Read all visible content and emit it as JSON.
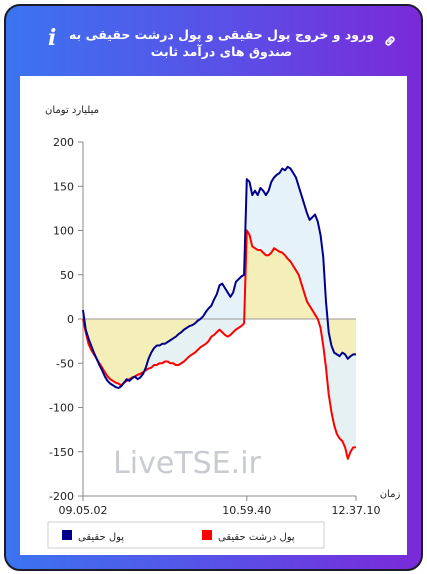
{
  "header": {
    "title": "ورود و خروج پول حقیقی و پول درشت حقیقی به صندوق های درآمد ثابت",
    "info_icon": "info-icon",
    "link_icon": "link-icon"
  },
  "colors": {
    "frame_gradient": [
      "#3b74f0",
      "#7a2ad8"
    ],
    "real_money": "#00008b",
    "big_real_money": "#ff0000",
    "fill_between": "#f4efb8",
    "fill_above": "#e3f1f9"
  },
  "watermark": "LiveTSE.ir",
  "chart_data": {
    "type": "line",
    "ylabel": "میلیارد تومان",
    "xlabel": "زمان",
    "ylim": [
      -200,
      200
    ],
    "yticks": [
      200,
      150,
      100,
      50,
      0,
      -50,
      -100,
      -150,
      -200
    ],
    "x_tick_labels": [
      {
        "x": 0,
        "label": "09.05.02"
      },
      {
        "x": 60,
        "label": "10.59.40"
      },
      {
        "x": 100,
        "label": "12.37.10"
      }
    ],
    "grid": false,
    "legend_position": "bottom",
    "series": [
      {
        "name": "پول حقیقی",
        "color": "#00008b",
        "points": [
          [
            0,
            10
          ],
          [
            1,
            -12
          ],
          [
            2,
            -22
          ],
          [
            3,
            -30
          ],
          [
            4,
            -38
          ],
          [
            5,
            -45
          ],
          [
            6,
            -52
          ],
          [
            7,
            -58
          ],
          [
            8,
            -65
          ],
          [
            9,
            -70
          ],
          [
            10,
            -73
          ],
          [
            11,
            -75
          ],
          [
            12,
            -77
          ],
          [
            13,
            -78
          ],
          [
            14,
            -76
          ],
          [
            15,
            -72
          ],
          [
            16,
            -68
          ],
          [
            17,
            -70
          ],
          [
            18,
            -67
          ],
          [
            19,
            -65
          ],
          [
            20,
            -68
          ],
          [
            21,
            -66
          ],
          [
            22,
            -62
          ],
          [
            23,
            -55
          ],
          [
            24,
            -45
          ],
          [
            25,
            -38
          ],
          [
            26,
            -33
          ],
          [
            27,
            -30
          ],
          [
            28,
            -30
          ],
          [
            29,
            -28
          ],
          [
            30,
            -28
          ],
          [
            31,
            -26
          ],
          [
            32,
            -24
          ],
          [
            33,
            -22
          ],
          [
            34,
            -20
          ],
          [
            35,
            -17
          ],
          [
            36,
            -15
          ],
          [
            37,
            -12
          ],
          [
            38,
            -10
          ],
          [
            39,
            -8
          ],
          [
            40,
            -7
          ],
          [
            41,
            -5
          ],
          [
            42,
            -2
          ],
          [
            43,
            0
          ],
          [
            44,
            3
          ],
          [
            45,
            8
          ],
          [
            46,
            12
          ],
          [
            47,
            15
          ],
          [
            48,
            22
          ],
          [
            49,
            28
          ],
          [
            50,
            38
          ],
          [
            51,
            40
          ],
          [
            52,
            35
          ],
          [
            53,
            30
          ],
          [
            54,
            25
          ],
          [
            55,
            30
          ],
          [
            56,
            42
          ],
          [
            57,
            45
          ],
          [
            58,
            48
          ],
          [
            59,
            50
          ],
          [
            60,
            158
          ],
          [
            61,
            155
          ],
          [
            62,
            140
          ],
          [
            63,
            145
          ],
          [
            64,
            140
          ],
          [
            65,
            148
          ],
          [
            66,
            145
          ],
          [
            67,
            140
          ],
          [
            68,
            145
          ],
          [
            69,
            155
          ],
          [
            70,
            160
          ],
          [
            71,
            163
          ],
          [
            72,
            165
          ],
          [
            73,
            170
          ],
          [
            74,
            168
          ],
          [
            75,
            172
          ],
          [
            76,
            170
          ],
          [
            77,
            165
          ],
          [
            78,
            160
          ],
          [
            79,
            150
          ],
          [
            80,
            140
          ],
          [
            81,
            130
          ],
          [
            82,
            120
          ],
          [
            83,
            112
          ],
          [
            84,
            115
          ],
          [
            85,
            118
          ],
          [
            86,
            110
          ],
          [
            87,
            95
          ],
          [
            88,
            70
          ],
          [
            89,
            20
          ],
          [
            90,
            -15
          ],
          [
            91,
            -30
          ],
          [
            92,
            -38
          ],
          [
            93,
            -40
          ],
          [
            94,
            -42
          ],
          [
            95,
            -38
          ],
          [
            96,
            -40
          ],
          [
            97,
            -45
          ],
          [
            98,
            -42
          ],
          [
            99,
            -40
          ],
          [
            100,
            -40
          ]
        ]
      },
      {
        "name": "پول درشت حقیقی",
        "color": "#ff0000",
        "points": [
          [
            0,
            0
          ],
          [
            1,
            -15
          ],
          [
            2,
            -28
          ],
          [
            3,
            -35
          ],
          [
            4,
            -40
          ],
          [
            5,
            -45
          ],
          [
            6,
            -50
          ],
          [
            7,
            -55
          ],
          [
            8,
            -60
          ],
          [
            9,
            -65
          ],
          [
            10,
            -68
          ],
          [
            11,
            -70
          ],
          [
            12,
            -72
          ],
          [
            13,
            -73
          ],
          [
            14,
            -75
          ],
          [
            15,
            -72
          ],
          [
            16,
            -70
          ],
          [
            17,
            -68
          ],
          [
            18,
            -66
          ],
          [
            19,
            -65
          ],
          [
            20,
            -63
          ],
          [
            21,
            -62
          ],
          [
            22,
            -60
          ],
          [
            23,
            -58
          ],
          [
            24,
            -56
          ],
          [
            25,
            -55
          ],
          [
            26,
            -52
          ],
          [
            27,
            -52
          ],
          [
            28,
            -50
          ],
          [
            29,
            -50
          ],
          [
            30,
            -48
          ],
          [
            31,
            -48
          ],
          [
            32,
            -50
          ],
          [
            33,
            -50
          ],
          [
            34,
            -52
          ],
          [
            35,
            -52
          ],
          [
            36,
            -50
          ],
          [
            37,
            -48
          ],
          [
            38,
            -45
          ],
          [
            39,
            -42
          ],
          [
            40,
            -40
          ],
          [
            41,
            -38
          ],
          [
            42,
            -35
          ],
          [
            43,
            -32
          ],
          [
            44,
            -30
          ],
          [
            45,
            -28
          ],
          [
            46,
            -25
          ],
          [
            47,
            -20
          ],
          [
            48,
            -18
          ],
          [
            49,
            -15
          ],
          [
            50,
            -12
          ],
          [
            51,
            -15
          ],
          [
            52,
            -18
          ],
          [
            53,
            -20
          ],
          [
            54,
            -18
          ],
          [
            55,
            -15
          ],
          [
            56,
            -12
          ],
          [
            57,
            -10
          ],
          [
            58,
            -8
          ],
          [
            59,
            -5
          ],
          [
            60,
            100
          ],
          [
            61,
            95
          ],
          [
            62,
            82
          ],
          [
            63,
            80
          ],
          [
            64,
            78
          ],
          [
            65,
            78
          ],
          [
            66,
            75
          ],
          [
            67,
            72
          ],
          [
            68,
            72
          ],
          [
            69,
            75
          ],
          [
            70,
            80
          ],
          [
            71,
            78
          ],
          [
            72,
            76
          ],
          [
            73,
            75
          ],
          [
            74,
            72
          ],
          [
            75,
            68
          ],
          [
            76,
            65
          ],
          [
            77,
            60
          ],
          [
            78,
            55
          ],
          [
            79,
            50
          ],
          [
            80,
            40
          ],
          [
            81,
            30
          ],
          [
            82,
            20
          ],
          [
            83,
            15
          ],
          [
            84,
            10
          ],
          [
            85,
            5
          ],
          [
            86,
            0
          ],
          [
            87,
            -10
          ],
          [
            88,
            -30
          ],
          [
            89,
            -55
          ],
          [
            90,
            -85
          ],
          [
            91,
            -105
          ],
          [
            92,
            -120
          ],
          [
            93,
            -130
          ],
          [
            94,
            -135
          ],
          [
            95,
            -138
          ],
          [
            96,
            -145
          ],
          [
            97,
            -158
          ],
          [
            98,
            -150
          ],
          [
            99,
            -145
          ],
          [
            100,
            -145
          ]
        ]
      }
    ]
  }
}
